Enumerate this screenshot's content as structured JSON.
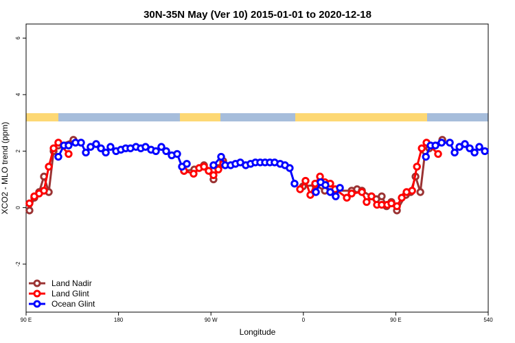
{
  "chart_data": {
    "type": "line",
    "title": "30N-35N May (Ver 10)   2015-01-01 to 2020-12-18",
    "xlabel": "Longitude",
    "ylabel": "XCO2 - MLO trend (ppm)",
    "xlim": [
      90,
      540
    ],
    "ylim": [
      -3.7,
      6.5
    ],
    "xticks": [
      {
        "value": 90,
        "label": "90 E"
      },
      180,
      {
        "value": 270,
        "label": "90 W"
      },
      {
        "value": 360,
        "label": "0"
      },
      {
        "value": 450,
        "label": "90 E"
      },
      540
    ],
    "yticks": [
      -2,
      0,
      2,
      4,
      6
    ],
    "legend": "bottom-left",
    "series": [
      {
        "name": "Land Nadir",
        "color": "#9b3333",
        "x": [
          93.3,
          98.0,
          102.7,
          107.4,
          112.1,
          116.8,
          121.4,
          136.1,
          null,
          243.8,
          253.8,
          263.2,
          272.5,
          277.2,
          281.9,
          null,
          359.5,
          371.5,
          380.9,
          390.9,
          407.0,
          412.3,
          417.0,
          426.3,
          431.0,
          436.3,
          441.0,
          445.7,
          451.1,
          459.8,
          464.5,
          469.2,
          473.9,
          478.6,
          482.6,
          495.3
        ],
        "values": [
          -0.1,
          0.35,
          0.55,
          1.1,
          0.55,
          2.0,
          2.2,
          2.4,
          null,
          1.3,
          1.35,
          1.5,
          1.0,
          1.4,
          1.65,
          null,
          0.75,
          0.8,
          0.6,
          0.6,
          0.6,
          0.65,
          0.6,
          0.4,
          0.3,
          0.4,
          0.05,
          0.2,
          -0.1,
          0.45,
          0.55,
          1.1,
          0.55,
          2.0,
          2.1,
          2.4
        ]
      },
      {
        "name": "Land Glint",
        "color": "#ff0000",
        "x": [
          93.3,
          98.0,
          102.7,
          107.4,
          112.1,
          116.8,
          121.4,
          131.4,
          null,
          243.8,
          253.1,
          258.5,
          263.2,
          267.8,
          272.5,
          277.2,
          281.9,
          null,
          356.8,
          362.1,
          366.8,
          371.5,
          376.2,
          380.9,
          386.2,
          390.9,
          402.3,
          407.0,
          417.0,
          421.6,
          426.3,
          431.7,
          436.3,
          441.7,
          445.7,
          451.1,
          455.8,
          460.5,
          465.9,
          470.6,
          475.3,
          479.9,
          491.2
        ],
        "values": [
          0.15,
          0.4,
          0.5,
          0.6,
          1.45,
          2.1,
          2.3,
          1.9,
          null,
          1.3,
          1.2,
          1.4,
          1.45,
          1.3,
          1.15,
          1.35,
          1.55,
          null,
          0.65,
          0.95,
          0.45,
          0.85,
          1.1,
          0.9,
          0.85,
          0.65,
          0.35,
          0.5,
          0.55,
          0.2,
          0.4,
          0.1,
          0.1,
          0.1,
          0.15,
          0.05,
          0.35,
          0.55,
          0.6,
          1.45,
          2.1,
          2.3,
          1.9
        ]
      },
      {
        "name": "Ocean Glint",
        "color": "#0000ff",
        "x": [
          121.4,
          126.8,
          131.4,
          138.1,
          143.5,
          148.2,
          152.8,
          158.2,
          162.9,
          167.6,
          172.2,
          177.6,
          182.3,
          187.0,
          191.6,
          197.0,
          201.7,
          206.3,
          211.7,
          216.4,
          221.7,
          226.4,
          231.8,
          237.1,
          241.8,
          246.5,
          null,
          272.5,
          279.9,
          283.9,
          289.2,
          293.9,
          298.6,
          303.9,
          308.6,
          313.3,
          318.0,
          322.7,
          327.4,
          332.0,
          337.4,
          342.1,
          346.7,
          351.4,
          null,
          372.2,
          376.8,
          381.5,
          386.2,
          391.5,
          395.6,
          null,
          479.3,
          483.9,
          488.6,
          494.6,
          502.6,
          507.3,
          512.0,
          517.3,
          522.0,
          526.7,
          531.3,
          536.7
        ],
        "values": [
          1.8,
          2.2,
          2.2,
          2.3,
          2.3,
          1.95,
          2.15,
          2.25,
          2.1,
          1.95,
          2.15,
          2.0,
          2.05,
          2.1,
          2.1,
          2.15,
          2.1,
          2.15,
          2.05,
          2.0,
          2.15,
          2.0,
          1.85,
          1.9,
          1.45,
          1.55,
          null,
          1.5,
          1.8,
          1.5,
          1.5,
          1.55,
          1.6,
          1.5,
          1.55,
          1.6,
          1.6,
          1.6,
          1.6,
          1.6,
          1.55,
          1.5,
          1.4,
          0.85,
          null,
          0.55,
          0.9,
          0.8,
          0.55,
          0.4,
          0.7,
          null,
          1.8,
          2.2,
          2.2,
          2.3,
          2.3,
          1.95,
          2.15,
          2.25,
          2.1,
          1.95,
          2.15,
          2.0
        ]
      }
    ]
  }
}
